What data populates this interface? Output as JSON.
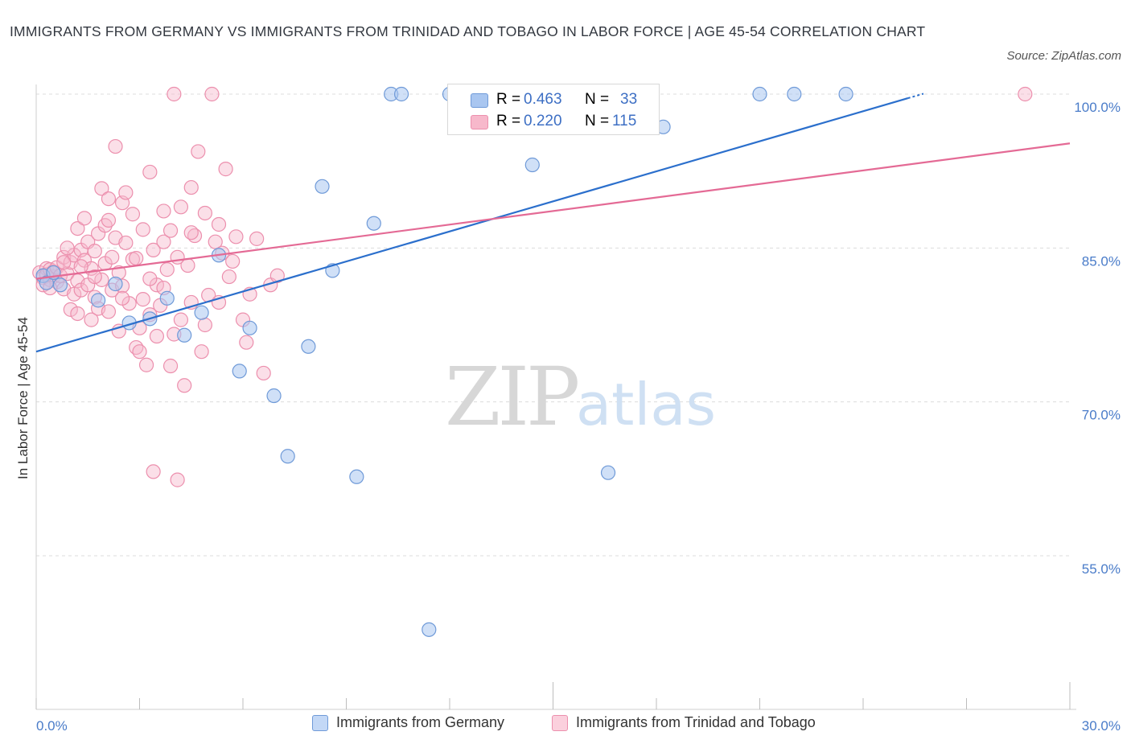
{
  "title": "IMMIGRANTS FROM GERMANY VS IMMIGRANTS FROM TRINIDAD AND TOBAGO IN LABOR FORCE | AGE 45-54 CORRELATION CHART",
  "source": "Source: ZipAtlas.com",
  "watermark": {
    "zip": "ZIP",
    "atlas": "atlas"
  },
  "colors": {
    "blue_fill": "#a9c6f0",
    "blue_stroke": "#6f9ad8",
    "blue_line": "#2b6fcc",
    "pink_fill": "#f7b8cb",
    "pink_stroke": "#ec8fad",
    "pink_line": "#e46a95",
    "axis_label": "#4a7cc9"
  },
  "stats": {
    "germany": {
      "r_label": "R = ",
      "r_value": "0.463",
      "n_label": "N = ",
      "n_value": "33"
    },
    "trinidad": {
      "r_label": "R = ",
      "r_value": "0.220",
      "n_label": "N = ",
      "n_value": "115"
    }
  },
  "legend": {
    "germany": "Immigrants from Germany",
    "trinidad": "Immigrants from Trinidad and Tobago"
  },
  "chart_data": {
    "type": "scatter",
    "xlabel": "",
    "ylabel": "In Labor Force | Age 45-54",
    "xlim": [
      0,
      30
    ],
    "ylim": [
      40,
      100
    ],
    "x_tick_labels": [
      "0.0%",
      "30.0%"
    ],
    "y_ticks": [
      {
        "value": 100,
        "label": "100.0%"
      },
      {
        "value": 85,
        "label": "85.0%"
      },
      {
        "value": 70,
        "label": "70.0%"
      },
      {
        "value": 55,
        "label": "55.0%"
      }
    ],
    "grid": true,
    "legend_position": "bottom",
    "series": [
      {
        "name": "Immigrants from Germany",
        "color": "blue",
        "trend": {
          "x0": 0,
          "y0": 74.9,
          "x1": 25.3,
          "y1": 99.6
        },
        "points": [
          [
            0.2,
            82.3
          ],
          [
            0.3,
            81.6
          ],
          [
            0.5,
            82.6
          ],
          [
            0.7,
            81.4
          ],
          [
            1.8,
            79.9
          ],
          [
            2.3,
            81.5
          ],
          [
            2.7,
            77.7
          ],
          [
            3.3,
            78.1
          ],
          [
            3.8,
            80.1
          ],
          [
            4.3,
            76.5
          ],
          [
            4.8,
            78.7
          ],
          [
            5.3,
            84.3
          ],
          [
            5.9,
            73.0
          ],
          [
            6.2,
            77.2
          ],
          [
            6.9,
            70.6
          ],
          [
            7.3,
            64.7
          ],
          [
            7.9,
            75.4
          ],
          [
            8.3,
            91.0
          ],
          [
            8.6,
            82.8
          ],
          [
            9.3,
            62.7
          ],
          [
            9.8,
            87.4
          ],
          [
            10.3,
            100.0
          ],
          [
            10.6,
            100.0
          ],
          [
            11.4,
            47.8
          ],
          [
            12.0,
            100.0
          ],
          [
            12.8,
            100.0
          ],
          [
            14.4,
            93.1
          ],
          [
            16.3,
            100.0
          ],
          [
            16.6,
            63.1
          ],
          [
            18.2,
            96.8
          ],
          [
            21.0,
            100.0
          ],
          [
            22.0,
            100.0
          ],
          [
            23.5,
            100.0
          ]
        ]
      },
      {
        "name": "Immigrants from Trinidad and Tobago",
        "color": "pink",
        "trend": {
          "x0": 0,
          "y0": 82.0,
          "x1": 30,
          "y1": 95.2
        },
        "points": [
          [
            0.1,
            82.6
          ],
          [
            0.2,
            82.1
          ],
          [
            0.2,
            81.4
          ],
          [
            0.3,
            83.0
          ],
          [
            0.3,
            82.4
          ],
          [
            0.4,
            81.9
          ],
          [
            0.4,
            82.9
          ],
          [
            0.5,
            82.2
          ],
          [
            0.5,
            82.7
          ],
          [
            0.6,
            81.7
          ],
          [
            0.6,
            83.1
          ],
          [
            0.7,
            82.3
          ],
          [
            0.8,
            81.0
          ],
          [
            0.8,
            84.1
          ],
          [
            0.9,
            82.5
          ],
          [
            1.0,
            79.0
          ],
          [
            1.0,
            83.6
          ],
          [
            1.1,
            80.5
          ],
          [
            1.1,
            84.3
          ],
          [
            1.2,
            81.8
          ],
          [
            1.2,
            86.9
          ],
          [
            1.3,
            84.8
          ],
          [
            1.3,
            80.9
          ],
          [
            1.4,
            87.9
          ],
          [
            1.4,
            83.8
          ],
          [
            1.5,
            81.4
          ],
          [
            1.5,
            85.6
          ],
          [
            1.6,
            78.0
          ],
          [
            1.6,
            83.0
          ],
          [
            1.7,
            80.2
          ],
          [
            1.7,
            84.7
          ],
          [
            1.8,
            79.1
          ],
          [
            1.8,
            86.4
          ],
          [
            1.9,
            81.9
          ],
          [
            1.9,
            90.8
          ],
          [
            2.0,
            87.2
          ],
          [
            2.0,
            83.5
          ],
          [
            2.1,
            78.8
          ],
          [
            2.1,
            89.8
          ],
          [
            2.2,
            84.1
          ],
          [
            2.2,
            80.9
          ],
          [
            2.3,
            94.9
          ],
          [
            2.3,
            86.0
          ],
          [
            2.4,
            82.6
          ],
          [
            2.4,
            76.9
          ],
          [
            2.5,
            89.4
          ],
          [
            2.5,
            81.3
          ],
          [
            2.6,
            85.5
          ],
          [
            2.6,
            90.4
          ],
          [
            2.7,
            79.6
          ],
          [
            2.8,
            83.9
          ],
          [
            2.8,
            88.3
          ],
          [
            2.9,
            75.3
          ],
          [
            3.0,
            77.2
          ],
          [
            3.0,
            74.9
          ],
          [
            3.1,
            80.0
          ],
          [
            3.1,
            86.8
          ],
          [
            3.2,
            73.6
          ],
          [
            3.3,
            78.5
          ],
          [
            3.3,
            92.4
          ],
          [
            3.4,
            84.8
          ],
          [
            3.4,
            63.2
          ],
          [
            3.5,
            81.4
          ],
          [
            3.5,
            76.4
          ],
          [
            3.6,
            79.4
          ],
          [
            3.7,
            85.6
          ],
          [
            3.7,
            88.6
          ],
          [
            3.8,
            82.9
          ],
          [
            3.9,
            73.5
          ],
          [
            3.9,
            86.7
          ],
          [
            4.0,
            100.0
          ],
          [
            4.0,
            76.6
          ],
          [
            4.1,
            62.4
          ],
          [
            4.2,
            89.0
          ],
          [
            4.2,
            78.0
          ],
          [
            4.3,
            71.6
          ],
          [
            4.4,
            83.3
          ],
          [
            4.5,
            90.9
          ],
          [
            4.5,
            79.7
          ],
          [
            4.6,
            86.2
          ],
          [
            4.7,
            94.4
          ],
          [
            4.8,
            74.9
          ],
          [
            4.9,
            88.4
          ],
          [
            5.0,
            80.4
          ],
          [
            5.1,
            100.0
          ],
          [
            5.2,
            85.6
          ],
          [
            5.3,
            79.7
          ],
          [
            5.4,
            84.5
          ],
          [
            5.5,
            92.7
          ],
          [
            5.6,
            82.2
          ],
          [
            5.8,
            86.1
          ],
          [
            6.0,
            78.0
          ],
          [
            6.2,
            80.5
          ],
          [
            6.4,
            85.9
          ],
          [
            6.6,
            72.8
          ],
          [
            6.8,
            81.4
          ],
          [
            7.0,
            82.3
          ],
          [
            0.9,
            85.0
          ],
          [
            1.3,
            83.2
          ],
          [
            1.7,
            82.2
          ],
          [
            2.1,
            87.7
          ],
          [
            2.5,
            80.1
          ],
          [
            2.9,
            84.0
          ],
          [
            3.3,
            82.0
          ],
          [
            3.7,
            81.1
          ],
          [
            4.1,
            84.1
          ],
          [
            4.5,
            86.5
          ],
          [
            4.9,
            77.5
          ],
          [
            5.3,
            87.3
          ],
          [
            5.7,
            83.7
          ],
          [
            6.1,
            75.8
          ],
          [
            0.4,
            81.1
          ],
          [
            0.8,
            83.6
          ],
          [
            1.2,
            78.6
          ],
          [
            28.7,
            100.0
          ]
        ]
      }
    ]
  }
}
